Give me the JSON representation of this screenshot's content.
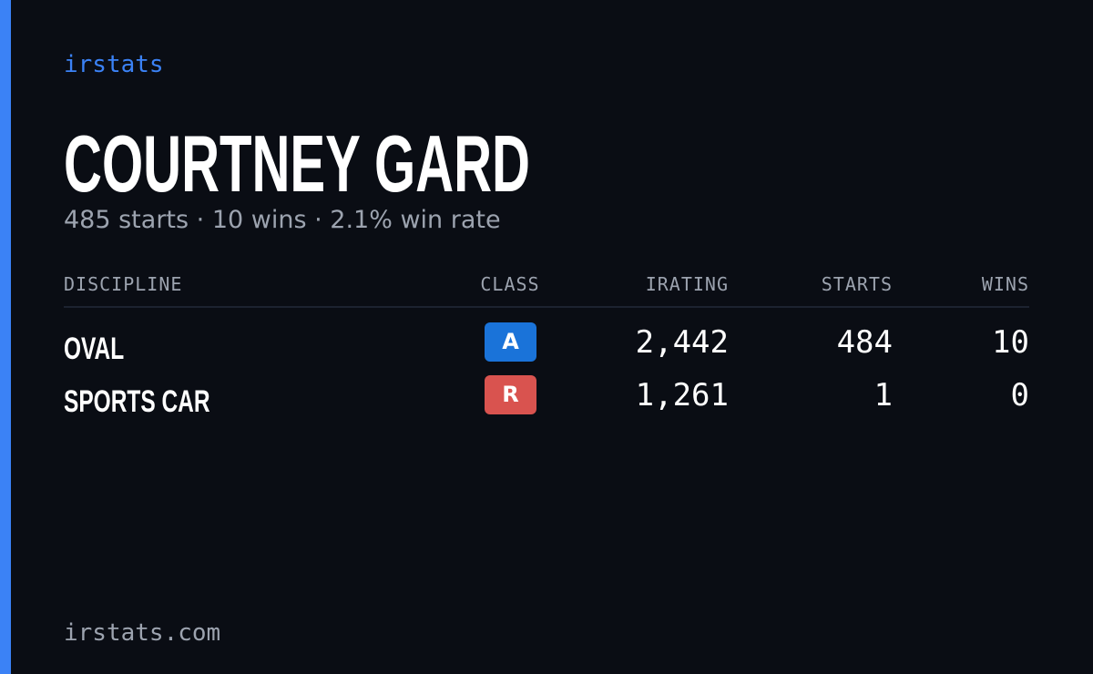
{
  "brand": "irstats",
  "name": "COURTNEY GARD",
  "summary": "485 starts · 10 wins · 2.1% win rate",
  "table": {
    "headers": [
      "DISCIPLINE",
      "CLASS",
      "IRATING",
      "STARTS",
      "WINS"
    ],
    "rows": [
      {
        "discipline": "OVAL",
        "class": "A",
        "class_color": "#1a73d9",
        "irating": "2,442",
        "starts": "484",
        "wins": "10"
      },
      {
        "discipline": "SPORTS CAR",
        "class": "R",
        "class_color": "#d9534f",
        "irating": "1,261",
        "starts": "1",
        "wins": "0"
      }
    ]
  },
  "footer": "irstats.com"
}
